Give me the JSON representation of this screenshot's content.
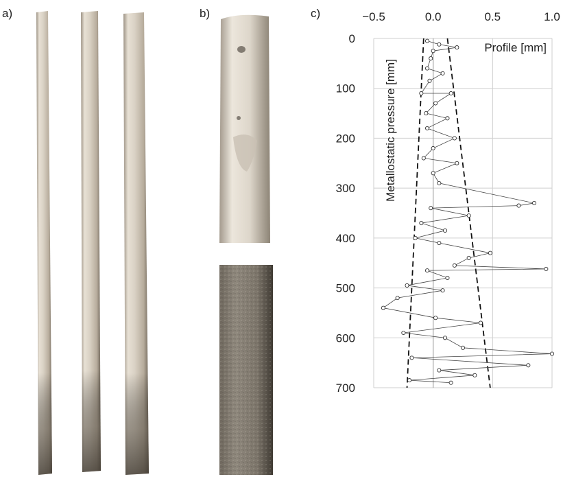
{
  "panels": {
    "a": "a)",
    "b": "b)",
    "c": "c)"
  },
  "chart_data": {
    "type": "scatter",
    "xlabel": "Profile [mm]",
    "ylabel": "Metallostatic pressure [mm]",
    "x_ticks": [
      "−0.5",
      "0.0",
      "0.5",
      "1.0"
    ],
    "x_tick_values": [
      -0.5,
      0.0,
      0.5,
      1.0
    ],
    "y_ticks": [
      "0",
      "100",
      "200",
      "300",
      "400",
      "500",
      "600",
      "700"
    ],
    "y_tick_values": [
      0,
      100,
      200,
      300,
      400,
      500,
      600,
      700
    ],
    "xlim": [
      -0.5,
      1.0
    ],
    "ylim": [
      700,
      0
    ],
    "x_axis_position": "top",
    "grid": true,
    "envelope_lines": [
      {
        "name": "",
        "style": "dashed",
        "points": [
          [
            -0.08,
            0
          ],
          [
            -0.22,
            700
          ]
        ]
      },
      {
        "name": "",
        "style": "dashed",
        "points": [
          [
            0.12,
            0
          ],
          [
            0.48,
            700
          ]
        ]
      }
    ],
    "profile_points": [
      [
        -0.05,
        5
      ],
      [
        0.05,
        12
      ],
      [
        0.2,
        18
      ],
      [
        0.0,
        25
      ],
      [
        -0.02,
        40
      ],
      [
        -0.05,
        60
      ],
      [
        0.08,
        70
      ],
      [
        -0.03,
        85
      ],
      [
        -0.1,
        110
      ],
      [
        0.15,
        110
      ],
      [
        0.02,
        130
      ],
      [
        -0.06,
        150
      ],
      [
        0.12,
        160
      ],
      [
        -0.05,
        180
      ],
      [
        0.18,
        200
      ],
      [
        0.0,
        220
      ],
      [
        -0.08,
        240
      ],
      [
        0.2,
        250
      ],
      [
        0.0,
        270
      ],
      [
        0.05,
        290
      ],
      [
        0.85,
        330
      ],
      [
        0.72,
        335
      ],
      [
        -0.02,
        340
      ],
      [
        0.3,
        355
      ],
      [
        -0.1,
        370
      ],
      [
        0.1,
        385
      ],
      [
        -0.15,
        400
      ],
      [
        0.05,
        410
      ],
      [
        0.48,
        430
      ],
      [
        0.3,
        440
      ],
      [
        0.18,
        455
      ],
      [
        0.95,
        462
      ],
      [
        -0.05,
        465
      ],
      [
        0.12,
        480
      ],
      [
        -0.22,
        495
      ],
      [
        0.08,
        505
      ],
      [
        -0.3,
        520
      ],
      [
        -0.42,
        540
      ],
      [
        0.02,
        560
      ],
      [
        0.4,
        570
      ],
      [
        -0.25,
        590
      ],
      [
        0.1,
        600
      ],
      [
        0.25,
        620
      ],
      [
        1.0,
        632
      ],
      [
        -0.18,
        640
      ],
      [
        0.8,
        655
      ],
      [
        0.05,
        665
      ],
      [
        0.35,
        675
      ],
      [
        -0.2,
        685
      ],
      [
        0.15,
        690
      ]
    ]
  }
}
